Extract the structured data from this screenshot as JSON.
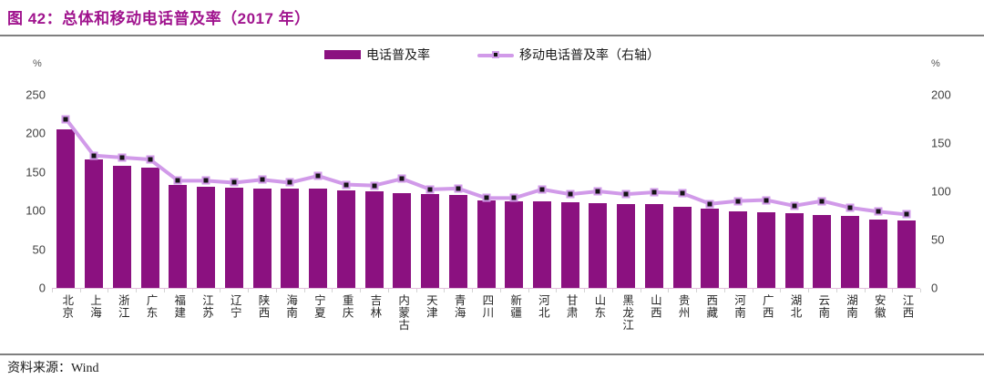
{
  "header": {
    "title": "图 42：总体和移动电话普及率（2017 年）"
  },
  "legend": [
    {
      "label": "电话普及率",
      "swatch": "bar-swatch"
    },
    {
      "label": "移动电话普及率（右轴）",
      "swatch": "line-marker-swatch"
    }
  ],
  "footer": {
    "source_label": "资料来源：Wind"
  },
  "colors": {
    "bar": "#8B1180",
    "line": "#D19AE9",
    "marker": "#141414",
    "title": "#A0148E",
    "rule": "#7F7F7F",
    "axis_text": "#404040"
  },
  "chart_data": {
    "type": "bar",
    "title": "总体和移动电话普及率（2017 年）",
    "categories": [
      "北京",
      "上海",
      "浙江",
      "广东",
      "福建",
      "江苏",
      "辽宁",
      "陕西",
      "海南",
      "宁夏",
      "重庆",
      "吉林",
      "内蒙古",
      "天津",
      "青海",
      "四川",
      "新疆",
      "河北",
      "甘肃",
      "山东",
      "黑龙江",
      "山西",
      "贵州",
      "西藏",
      "河南",
      "广西",
      "湖北",
      "云南",
      "湖南",
      "安徽",
      "江西"
    ],
    "series": [
      {
        "name": "电话普及率",
        "type": "bar",
        "axis": "left",
        "values": [
          205,
          166,
          158,
          156,
          133,
          131,
          130,
          129,
          128,
          128,
          126,
          125,
          123,
          121,
          120,
          113,
          112,
          112,
          111,
          110,
          109,
          108,
          105,
          103,
          99,
          98,
          97,
          94,
          93,
          89,
          87
        ]
      },
      {
        "name": "移动电话普及率（右轴）",
        "type": "line",
        "axis": "right",
        "values": [
          175,
          137,
          135,
          133,
          111,
          111,
          109,
          112,
          109,
          116,
          107,
          106,
          113,
          102,
          103,
          93,
          93,
          102,
          97,
          100,
          97,
          99,
          98,
          87,
          90,
          91,
          85,
          90,
          83,
          79,
          76
        ]
      }
    ],
    "left_axis": {
      "unit": "%",
      "ticks": [
        0,
        50,
        100,
        150,
        200,
        250
      ],
      "max": 250
    },
    "right_axis": {
      "unit": "%",
      "ticks": [
        0,
        50,
        100,
        150,
        200
      ],
      "max": 200
    },
    "grid": false,
    "legend_position": "top"
  }
}
